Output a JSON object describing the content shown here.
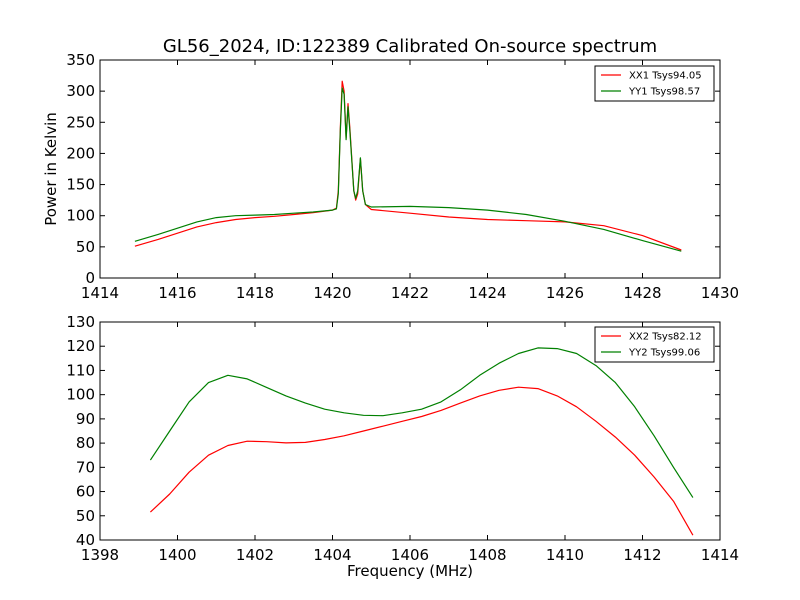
{
  "figure": {
    "title": "GL56_2024, ID:122389 Calibrated On-source spectrum",
    "xlabel": "Frequency (MHz)",
    "ylabel": "Power in Kelvin"
  },
  "chart_data": [
    {
      "type": "line",
      "xlim": [
        1414,
        1430
      ],
      "ylim": [
        0,
        350
      ],
      "xticks": [
        1414,
        1416,
        1418,
        1420,
        1422,
        1424,
        1426,
        1428,
        1430
      ],
      "yticks": [
        0,
        50,
        100,
        150,
        200,
        250,
        300,
        350
      ],
      "xlabel": "",
      "ylabel": "Power in Kelvin",
      "grid": false,
      "legend": "top-right",
      "series": [
        {
          "name": "XX1 Tsys94.05",
          "color": "#ff0000",
          "points": [
            [
              1414.9,
              51
            ],
            [
              1415.5,
              62
            ],
            [
              1416.0,
              72
            ],
            [
              1416.5,
              82
            ],
            [
              1417.0,
              89
            ],
            [
              1417.5,
              94
            ],
            [
              1418.0,
              97
            ],
            [
              1418.5,
              99
            ],
            [
              1419.0,
              102
            ],
            [
              1419.5,
              105
            ],
            [
              1420.0,
              109
            ],
            [
              1420.1,
              112
            ],
            [
              1420.15,
              140
            ],
            [
              1420.2,
              240
            ],
            [
              1420.25,
              316
            ],
            [
              1420.3,
              300
            ],
            [
              1420.35,
              225
            ],
            [
              1420.4,
              280
            ],
            [
              1420.45,
              240
            ],
            [
              1420.55,
              140
            ],
            [
              1420.6,
              125
            ],
            [
              1420.65,
              135
            ],
            [
              1420.72,
              192
            ],
            [
              1420.78,
              140
            ],
            [
              1420.85,
              118
            ],
            [
              1421.0,
              110
            ],
            [
              1422.0,
              104
            ],
            [
              1423.0,
              98
            ],
            [
              1424.0,
              94
            ],
            [
              1425.0,
              92
            ],
            [
              1426.0,
              90
            ],
            [
              1427.0,
              84
            ],
            [
              1428.0,
              68
            ],
            [
              1429.0,
              45
            ]
          ]
        },
        {
          "name": "YY1 Tsys98.57",
          "color": "#008000",
          "points": [
            [
              1414.9,
              59
            ],
            [
              1415.5,
              70
            ],
            [
              1416.0,
              80
            ],
            [
              1416.5,
              90
            ],
            [
              1417.0,
              97
            ],
            [
              1417.5,
              100
            ],
            [
              1418.0,
              101
            ],
            [
              1418.5,
              102
            ],
            [
              1419.0,
              104
            ],
            [
              1419.5,
              106
            ],
            [
              1420.0,
              109
            ],
            [
              1420.1,
              111
            ],
            [
              1420.15,
              135
            ],
            [
              1420.2,
              235
            ],
            [
              1420.25,
              305
            ],
            [
              1420.3,
              295
            ],
            [
              1420.35,
              222
            ],
            [
              1420.4,
              275
            ],
            [
              1420.45,
              235
            ],
            [
              1420.55,
              140
            ],
            [
              1420.6,
              128
            ],
            [
              1420.65,
              140
            ],
            [
              1420.72,
              193
            ],
            [
              1420.78,
              140
            ],
            [
              1420.85,
              118
            ],
            [
              1421.0,
              114
            ],
            [
              1422.0,
              115
            ],
            [
              1423.0,
              113
            ],
            [
              1424.0,
              109
            ],
            [
              1425.0,
              102
            ],
            [
              1426.0,
              91
            ],
            [
              1427.0,
              78
            ],
            [
              1428.0,
              60
            ],
            [
              1429.0,
              43
            ]
          ]
        }
      ]
    },
    {
      "type": "line",
      "xlim": [
        1398,
        1414
      ],
      "ylim": [
        40,
        130
      ],
      "xticks": [
        1398,
        1400,
        1402,
        1404,
        1406,
        1408,
        1410,
        1412,
        1414
      ],
      "yticks": [
        40,
        50,
        60,
        70,
        80,
        90,
        100,
        110,
        120,
        130
      ],
      "xlabel": "Frequency (MHz)",
      "ylabel": "",
      "grid": false,
      "legend": "top-right",
      "series": [
        {
          "name": "XX2 Tsys82.12",
          "color": "#ff0000",
          "points": [
            [
              1399.3,
              51.5
            ],
            [
              1399.8,
              59
            ],
            [
              1400.3,
              68
            ],
            [
              1400.8,
              75
            ],
            [
              1401.3,
              79
            ],
            [
              1401.8,
              80.8
            ],
            [
              1402.3,
              80.6
            ],
            [
              1402.8,
              80.1
            ],
            [
              1403.3,
              80.3
            ],
            [
              1403.8,
              81.5
            ],
            [
              1404.3,
              83
            ],
            [
              1404.8,
              85
            ],
            [
              1405.3,
              87
            ],
            [
              1405.8,
              89
            ],
            [
              1406.3,
              91
            ],
            [
              1406.8,
              93.5
            ],
            [
              1407.3,
              96.5
            ],
            [
              1407.8,
              99.5
            ],
            [
              1408.3,
              101.8
            ],
            [
              1408.8,
              103.1
            ],
            [
              1409.3,
              102.5
            ],
            [
              1409.8,
              99.5
            ],
            [
              1410.3,
              95
            ],
            [
              1410.8,
              89
            ],
            [
              1411.3,
              82.5
            ],
            [
              1411.8,
              75
            ],
            [
              1412.3,
              66
            ],
            [
              1412.8,
              56
            ],
            [
              1413.3,
              42
            ]
          ]
        },
        {
          "name": "YY2 Tsys99.06",
          "color": "#008000",
          "points": [
            [
              1399.3,
              73
            ],
            [
              1399.8,
              85
            ],
            [
              1400.3,
              97
            ],
            [
              1400.8,
              105
            ],
            [
              1401.3,
              108
            ],
            [
              1401.8,
              106.5
            ],
            [
              1402.3,
              103
            ],
            [
              1402.8,
              99.5
            ],
            [
              1403.3,
              96.5
            ],
            [
              1403.8,
              94
            ],
            [
              1404.3,
              92.5
            ],
            [
              1404.8,
              91.5
            ],
            [
              1405.3,
              91.3
            ],
            [
              1405.8,
              92.5
            ],
            [
              1406.3,
              94
            ],
            [
              1406.8,
              97
            ],
            [
              1407.3,
              102
            ],
            [
              1407.8,
              108
            ],
            [
              1408.3,
              113
            ],
            [
              1408.8,
              117
            ],
            [
              1409.3,
              119.3
            ],
            [
              1409.8,
              119
            ],
            [
              1410.3,
              117
            ],
            [
              1410.8,
              112
            ],
            [
              1411.3,
              105
            ],
            [
              1411.8,
              95
            ],
            [
              1412.3,
              83
            ],
            [
              1412.8,
              70
            ],
            [
              1413.3,
              57.5
            ]
          ]
        }
      ]
    }
  ]
}
